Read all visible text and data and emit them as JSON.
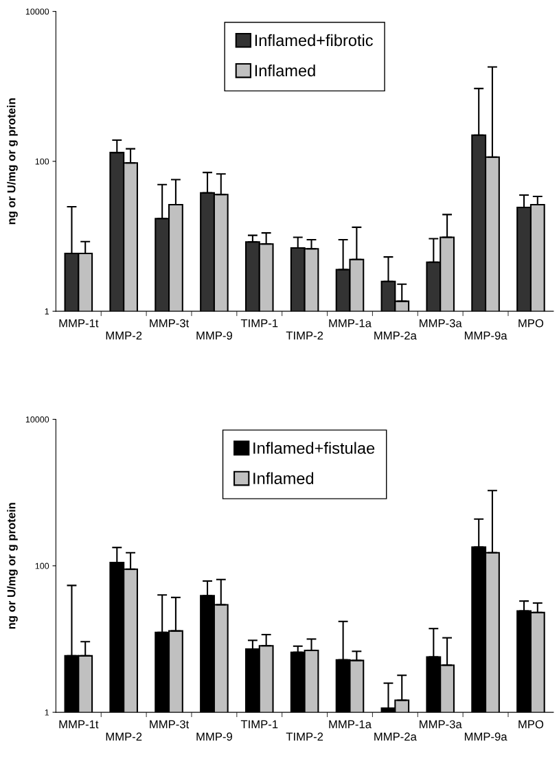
{
  "chart_data": [
    {
      "type": "bar",
      "ylabel": "ng or U/mg or g protein",
      "log": "y",
      "ylim": [
        1,
        10000
      ],
      "yticks": [
        1,
        100,
        10000
      ],
      "grid": false,
      "legend": "top",
      "categories": [
        "MMP-1t",
        "MMP-2",
        "MMP-3t",
        "MMP-9",
        "TIMP-1",
        "TIMP-2",
        "MMP-1a",
        "MMP-2a",
        "MMP-3a",
        "MMP-9a",
        "MPO"
      ],
      "series": [
        {
          "name": "Inflamed+fibrotic",
          "color": "#333333",
          "values": [
            5.9,
            131,
            17.2,
            38,
            8.4,
            7.0,
            3.6,
            2.5,
            4.5,
            223,
            24.3
          ],
          "errors": [
            [
              5.9,
              24.8
            ],
            [
              131,
              192
            ],
            [
              17.2,
              49
            ],
            [
              38,
              71
            ],
            [
              8.4,
              10.3
            ],
            [
              7.0,
              9.7
            ],
            [
              3.6,
              9.0
            ],
            [
              2.5,
              5.3
            ],
            [
              4.5,
              9.3
            ],
            [
              223,
              936
            ],
            [
              24.3,
              35.5
            ]
          ]
        },
        {
          "name": "Inflamed",
          "color": "#c0c0c0",
          "values": [
            5.9,
            95,
            26.4,
            36,
            7.9,
            6.8,
            4.9,
            1.36,
            9.7,
            114,
            26.4
          ],
          "errors": [
            [
              5.9,
              8.5
            ],
            [
              95,
              147
            ],
            [
              26.4,
              57
            ],
            [
              36,
              68
            ],
            [
              7.9,
              11.1
            ],
            [
              6.8,
              9.0
            ],
            [
              4.9,
              13.2
            ],
            [
              1.36,
              2.3
            ],
            [
              9.7,
              19.5
            ],
            [
              114,
              1812
            ],
            [
              26.4,
              34
            ]
          ]
        }
      ]
    },
    {
      "type": "bar",
      "ylabel": "ng or U/mg or g protein",
      "log": "y",
      "ylim": [
        1,
        10000
      ],
      "yticks": [
        1,
        100,
        10000
      ],
      "grid": false,
      "legend": "top",
      "categories": [
        "MMP-1t",
        "MMP-2",
        "MMP-3t",
        "MMP-9",
        "TIMP-1",
        "TIMP-2",
        "MMP-1a",
        "MMP-2a",
        "MMP-3a",
        "MMP-9a",
        "MPO"
      ],
      "series": [
        {
          "name": "Inflamed+fistulae",
          "color": "#000000",
          "values": [
            5.9,
            111,
            12.3,
            39,
            7.3,
            6.6,
            5.2,
            1.14,
            5.7,
            180,
            24.2
          ],
          "errors": [
            [
              5.9,
              54
            ],
            [
              111,
              178
            ],
            [
              12.3,
              40
            ],
            [
              39,
              62
            ],
            [
              7.3,
              9.6
            ],
            [
              6.6,
              8.0
            ],
            [
              5.2,
              17.4
            ],
            [
              1.14,
              2.5
            ],
            [
              5.7,
              13.9
            ],
            [
              180,
              435
            ],
            [
              24.2,
              33
            ]
          ]
        },
        {
          "name": "Inflamed",
          "color": "#c0c0c0",
          "values": [
            5.9,
            90,
            12.9,
            29.4,
            8.1,
            7.0,
            5.1,
            1.46,
            4.4,
            151,
            23
          ],
          "errors": [
            [
              5.9,
              9.2
            ],
            [
              90,
              151
            ],
            [
              12.9,
              37
            ],
            [
              29.4,
              65
            ],
            [
              8.1,
              11.5
            ],
            [
              7.0,
              10
            ],
            [
              5.1,
              6.8
            ],
            [
              1.46,
              3.2
            ],
            [
              4.4,
              10.4
            ],
            [
              151,
              1064
            ],
            [
              23,
              31
            ]
          ]
        }
      ]
    }
  ]
}
